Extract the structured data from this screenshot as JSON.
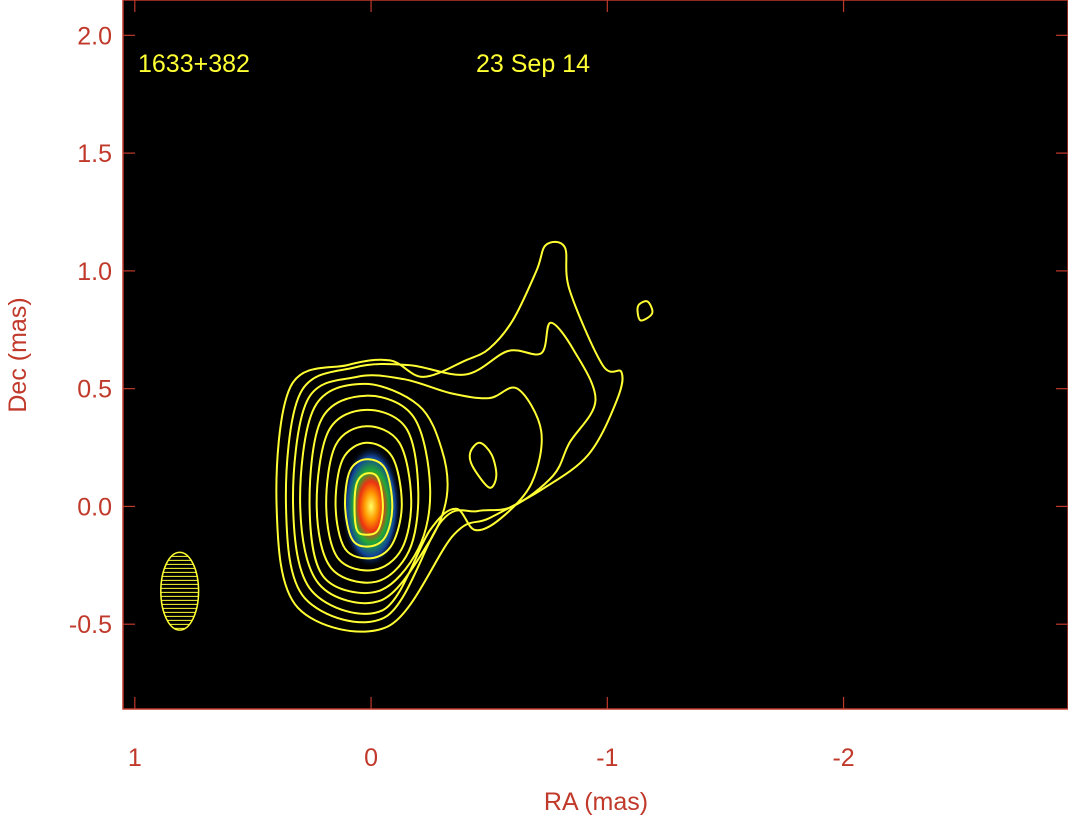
{
  "chart_data": {
    "type": "contour",
    "source_name": "1633+382",
    "epoch": "23 Sep 14",
    "xlabel": "RA (mas)",
    "ylabel": "Dec (mas)",
    "xlim": [
      1.05,
      -2.95
    ],
    "ylim": [
      -0.86,
      2.15
    ],
    "xticks": [
      1,
      0,
      -1,
      -2
    ],
    "xtick_labels": [
      "1",
      "0",
      "-1",
      "-2"
    ],
    "yticks": [
      -0.5,
      0.0,
      0.5,
      1.0,
      1.5,
      2.0
    ],
    "ytick_labels": [
      "-0.5",
      "0.0",
      "0.5",
      "1.0",
      "1.5",
      "2.0"
    ],
    "beam": {
      "ra": 0.81,
      "dec": -0.36,
      "width_mas": 0.16,
      "height_mas": 0.33,
      "pa_deg": 0
    },
    "core": {
      "ra": 0.0,
      "dec": 0.0
    },
    "colors": {
      "background": "#000000",
      "axes": "#c0392b",
      "contours": "#ffff33",
      "annotations": "#ffff33"
    },
    "contours": [
      [
        [
          0.02,
          -0.12
        ],
        [
          -0.03,
          -0.1
        ],
        [
          -0.05,
          0.0
        ],
        [
          -0.03,
          0.12
        ],
        [
          0.02,
          0.14
        ],
        [
          0.06,
          0.1
        ],
        [
          0.07,
          0.0
        ],
        [
          0.06,
          -0.1
        ]
      ],
      [
        [
          0.01,
          -0.17
        ],
        [
          -0.06,
          -0.13
        ],
        [
          -0.09,
          0.0
        ],
        [
          -0.06,
          0.16
        ],
        [
          0.02,
          0.2
        ],
        [
          0.09,
          0.15
        ],
        [
          0.11,
          0.0
        ],
        [
          0.08,
          -0.14
        ]
      ],
      [
        [
          0.0,
          -0.22
        ],
        [
          -0.09,
          -0.16
        ],
        [
          -0.13,
          0.01
        ],
        [
          -0.09,
          0.21
        ],
        [
          0.02,
          0.27
        ],
        [
          0.12,
          0.2
        ],
        [
          0.15,
          0.0
        ],
        [
          0.11,
          -0.18
        ]
      ],
      [
        [
          -0.01,
          -0.27
        ],
        [
          -0.13,
          -0.18
        ],
        [
          -0.17,
          0.03
        ],
        [
          -0.12,
          0.27
        ],
        [
          0.02,
          0.34
        ],
        [
          0.15,
          0.26
        ],
        [
          0.19,
          0.0
        ],
        [
          0.14,
          -0.22
        ]
      ],
      [
        [
          -0.02,
          -0.32
        ],
        [
          -0.16,
          -0.19
        ],
        [
          -0.2,
          0.06
        ],
        [
          -0.15,
          0.33
        ],
        [
          0.02,
          0.41
        ],
        [
          0.18,
          0.32
        ],
        [
          0.23,
          0.0
        ],
        [
          0.17,
          -0.26
        ]
      ],
      [
        [
          -0.03,
          -0.36
        ],
        [
          -0.2,
          -0.18
        ],
        [
          -0.25,
          0.08
        ],
        [
          -0.18,
          0.38
        ],
        [
          0.02,
          0.47
        ],
        [
          0.21,
          0.37
        ],
        [
          0.26,
          0.0
        ],
        [
          0.2,
          -0.3
        ]
      ],
      [
        [
          -0.04,
          -0.4
        ],
        [
          -0.24,
          -0.16
        ],
        [
          -0.32,
          0.04
        ],
        [
          -0.3,
          0.24
        ],
        [
          -0.2,
          0.43
        ],
        [
          0.03,
          0.52
        ],
        [
          0.24,
          0.42
        ],
        [
          0.3,
          0.0
        ],
        [
          0.22,
          -0.33
        ]
      ],
      [
        [
          -0.05,
          -0.44
        ],
        [
          -0.25,
          -0.1
        ],
        [
          -0.36,
          -0.01
        ],
        [
          -0.44,
          -0.1
        ],
        [
          -0.55,
          -0.05
        ],
        [
          -0.68,
          0.1
        ],
        [
          -0.72,
          0.32
        ],
        [
          -0.62,
          0.5
        ],
        [
          -0.5,
          0.46
        ],
        [
          -0.34,
          0.48
        ],
        [
          -0.14,
          0.54
        ],
        [
          0.06,
          0.55
        ],
        [
          0.27,
          0.45
        ],
        [
          0.33,
          0.0
        ],
        [
          0.25,
          -0.36
        ]
      ],
      [
        [
          -0.06,
          -0.47
        ],
        [
          -0.3,
          -0.06
        ],
        [
          -0.45,
          -0.02
        ],
        [
          -0.6,
          0.0
        ],
        [
          -0.77,
          0.13
        ],
        [
          -0.84,
          0.27
        ],
        [
          -0.95,
          0.45
        ],
        [
          -0.86,
          0.66
        ],
        [
          -0.76,
          0.78
        ],
        [
          -0.72,
          0.65
        ],
        [
          -0.58,
          0.66
        ],
        [
          -0.4,
          0.56
        ],
        [
          -0.16,
          0.6
        ],
        [
          0.07,
          0.59
        ],
        [
          0.3,
          0.48
        ],
        [
          0.36,
          0.0
        ],
        [
          0.28,
          -0.39
        ]
      ],
      [
        [
          -0.07,
          -0.51
        ],
        [
          -0.35,
          -0.12
        ],
        [
          -0.5,
          -0.05
        ],
        [
          -0.72,
          0.07
        ],
        [
          -0.92,
          0.22
        ],
        [
          -1.04,
          0.45
        ],
        [
          -1.06,
          0.57
        ],
        [
          -0.98,
          0.6
        ],
        [
          -0.84,
          0.92
        ],
        [
          -0.82,
          1.1
        ],
        [
          -0.74,
          1.11
        ],
        [
          -0.7,
          1.0
        ],
        [
          -0.6,
          0.79
        ],
        [
          -0.5,
          0.67
        ],
        [
          -0.4,
          0.62
        ],
        [
          -0.22,
          0.55
        ],
        [
          -0.08,
          0.62
        ],
        [
          0.1,
          0.6
        ],
        [
          0.34,
          0.51
        ],
        [
          0.4,
          0.0
        ],
        [
          0.31,
          -0.43
        ]
      ],
      [
        [
          -0.43,
          0.17
        ],
        [
          -0.5,
          0.08
        ],
        [
          -0.53,
          0.13
        ],
        [
          -0.51,
          0.22
        ],
        [
          -0.46,
          0.27
        ],
        [
          -0.42,
          0.23
        ]
      ],
      [
        [
          -1.14,
          0.79
        ],
        [
          -1.19,
          0.82
        ],
        [
          -1.17,
          0.87
        ],
        [
          -1.13,
          0.85
        ]
      ]
    ]
  }
}
